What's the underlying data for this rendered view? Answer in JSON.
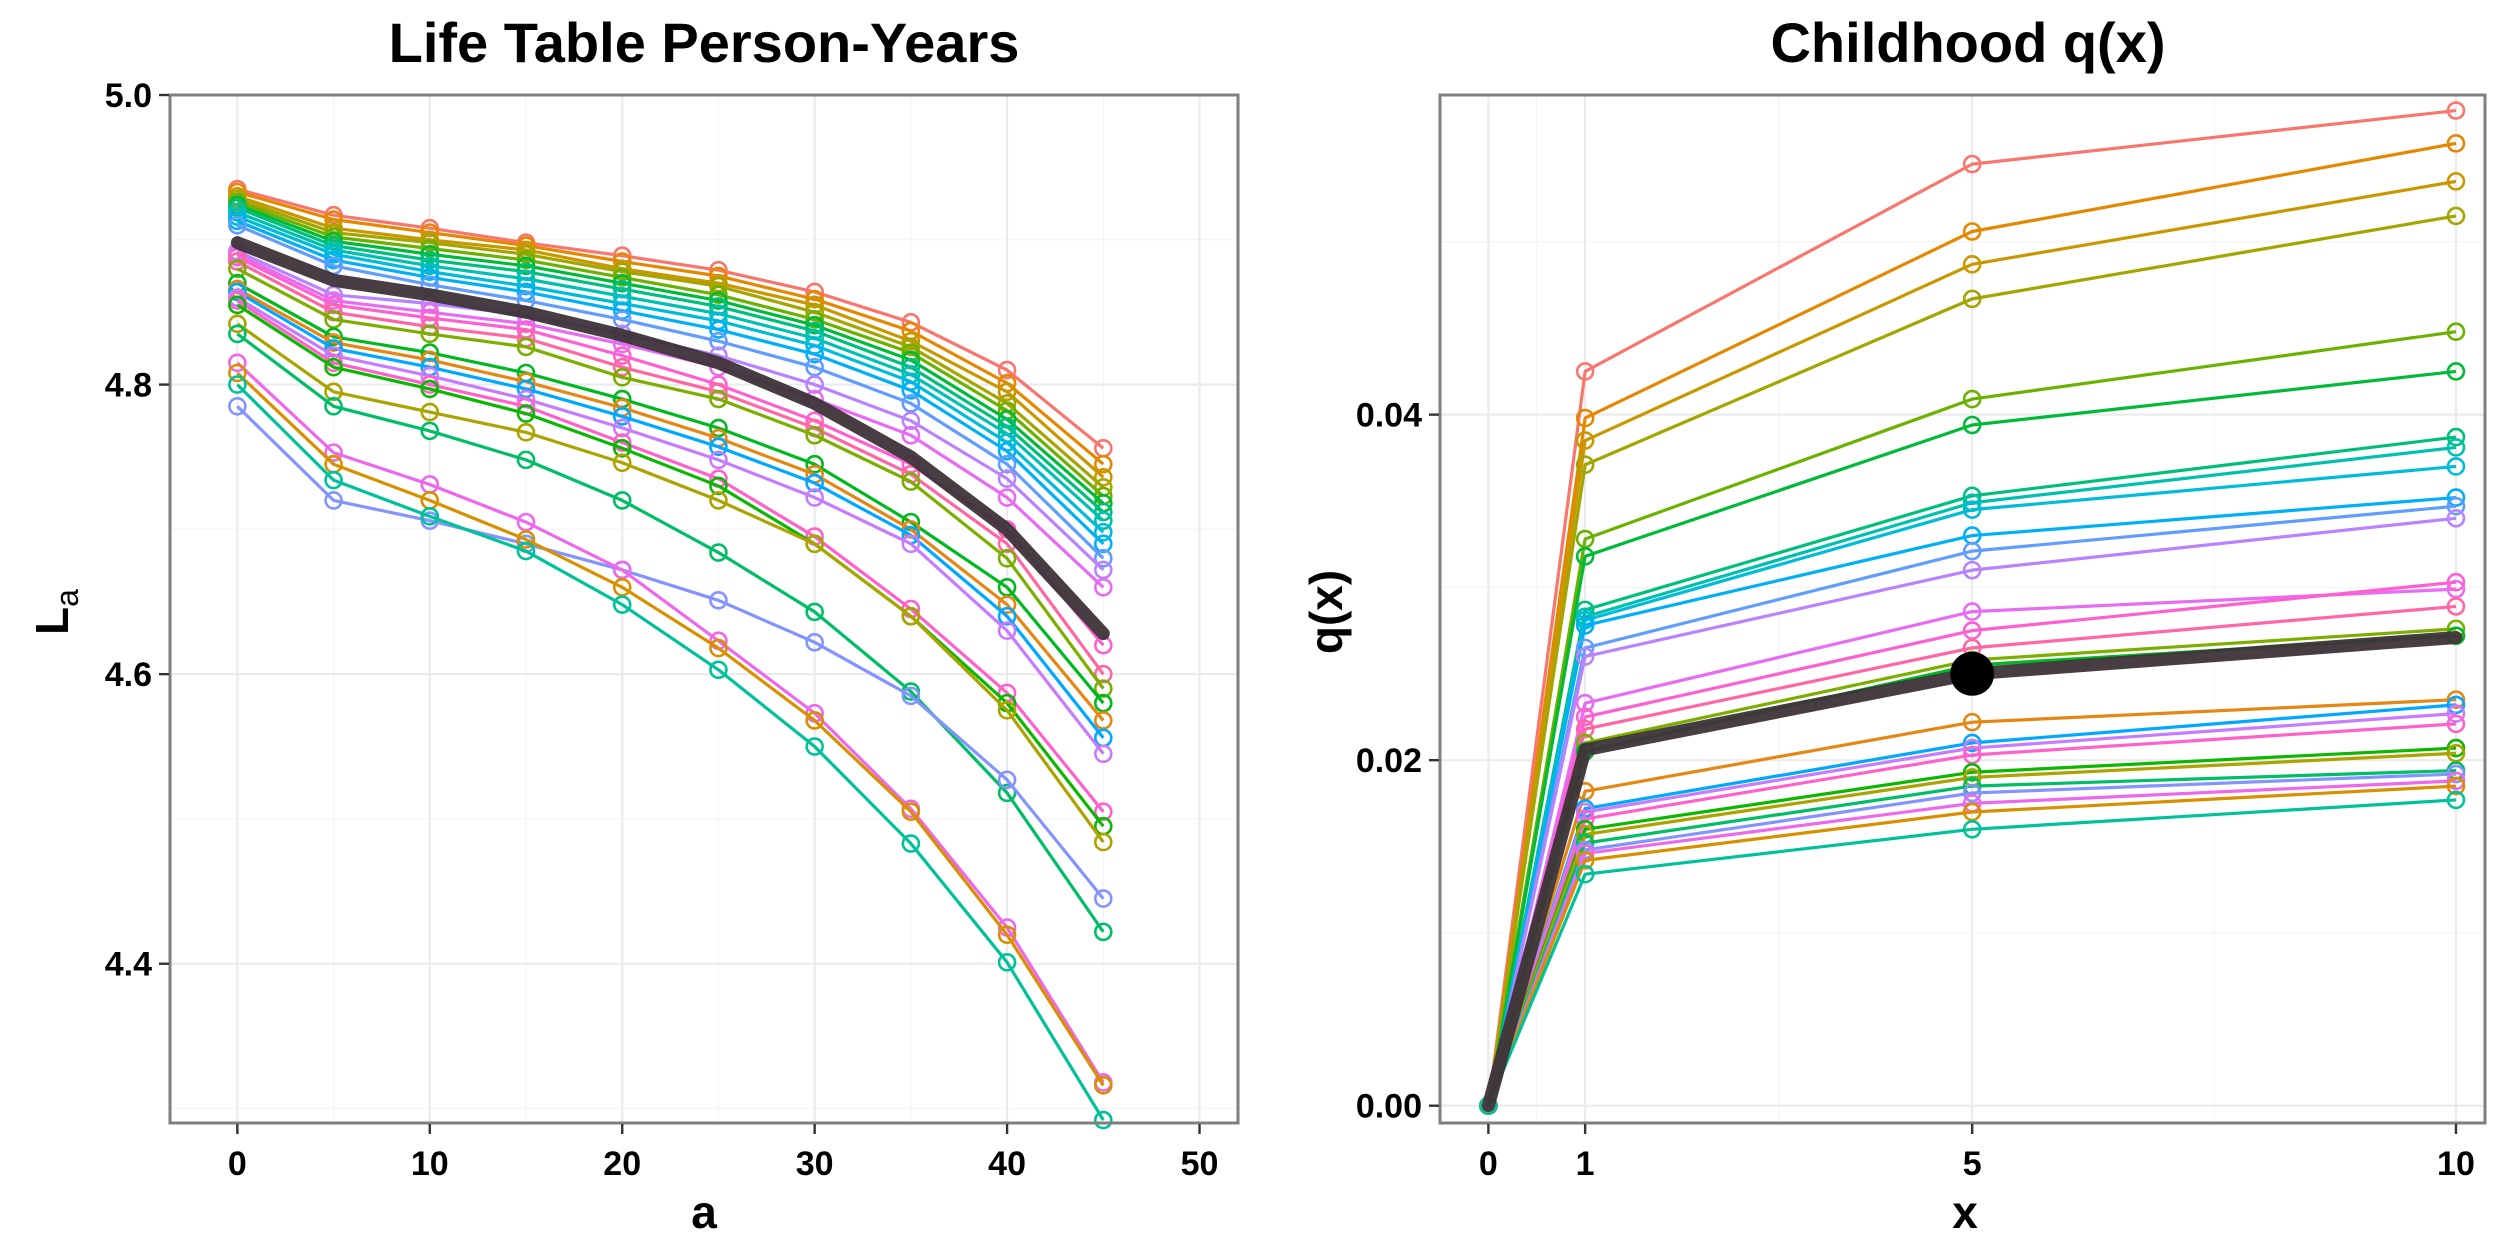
{
  "palette": [
    "#F8766D",
    "#E58700",
    "#C99800",
    "#A3A500",
    "#6BB100",
    "#00BA38",
    "#00BF7D",
    "#00C0AF",
    "#00BCD8",
    "#00B0F6",
    "#619CFF",
    "#B983FF",
    "#E76BF3",
    "#FD61D1",
    "#FF67A4",
    "#7CAE00",
    "#00B81F",
    "#E68613",
    "#00A9FF",
    "#C77CFF",
    "#FF61CC",
    "#0CB702",
    "#ABA300",
    "#00BE67",
    "#8494FF",
    "#ED68ED",
    "#D89000",
    "#00C19A"
  ],
  "mean_color": "#3d3338",
  "chart_data": [
    {
      "type": "line",
      "title": "Life Table Person-Years",
      "xlabel": "a",
      "ylabel_main": "L",
      "ylabel_sub": "a",
      "xlim": [
        -3.5,
        52
      ],
      "ylim": [
        4.29,
        5.0
      ],
      "x_ticks": [
        0,
        10,
        20,
        30,
        40,
        50
      ],
      "x_tick_labels": [
        "0",
        "10",
        "20",
        "30",
        "40",
        "50"
      ],
      "y_ticks": [
        4.4,
        4.6,
        4.8,
        5.0
      ],
      "y_tick_labels": [
        "4.4",
        "4.6",
        "4.8",
        "5.0"
      ],
      "grid": true,
      "x": [
        0,
        5,
        10,
        15,
        20,
        25,
        30,
        35,
        40,
        45
      ],
      "series": [
        {
          "values": [
            4.935,
            4.917,
            4.908,
            4.898,
            4.889,
            4.879,
            4.864,
            4.843,
            4.81,
            4.756
          ]
        },
        {
          "values": [
            4.933,
            4.914,
            4.905,
            4.896,
            4.885,
            4.875,
            4.859,
            4.837,
            4.801,
            4.745
          ]
        },
        {
          "values": [
            4.93,
            4.908,
            4.9,
            4.893,
            4.88,
            4.87,
            4.855,
            4.83,
            4.795,
            4.736
          ]
        },
        {
          "values": [
            4.928,
            4.905,
            4.898,
            4.89,
            4.878,
            4.868,
            4.85,
            4.826,
            4.787,
            4.729
          ]
        },
        {
          "values": [
            4.926,
            4.902,
            4.894,
            4.886,
            4.874,
            4.862,
            4.845,
            4.822,
            4.782,
            4.723
          ]
        },
        {
          "values": [
            4.924,
            4.899,
            4.89,
            4.882,
            4.87,
            4.858,
            4.841,
            4.817,
            4.776,
            4.718
          ]
        },
        {
          "values": [
            4.922,
            4.896,
            4.886,
            4.878,
            4.866,
            4.854,
            4.837,
            4.812,
            4.771,
            4.712
          ]
        },
        {
          "values": [
            4.919,
            4.893,
            4.882,
            4.873,
            4.861,
            4.849,
            4.832,
            4.807,
            4.766,
            4.706
          ]
        },
        {
          "values": [
            4.916,
            4.89,
            4.878,
            4.868,
            4.856,
            4.844,
            4.827,
            4.802,
            4.76,
            4.698
          ]
        },
        {
          "values": [
            4.913,
            4.886,
            4.874,
            4.864,
            4.851,
            4.838,
            4.821,
            4.796,
            4.754,
            4.69
          ]
        },
        {
          "values": [
            4.91,
            4.882,
            4.869,
            4.858,
            4.845,
            4.83,
            4.812,
            4.787,
            4.745,
            4.68
          ]
        },
        {
          "values": [
            4.892,
            4.862,
            4.856,
            4.848,
            4.835,
            4.82,
            4.8,
            4.775,
            4.735,
            4.672
          ]
        },
        {
          "values": [
            4.89,
            4.858,
            4.85,
            4.842,
            4.828,
            4.812,
            4.79,
            4.765,
            4.722,
            4.66
          ]
        },
        {
          "values": [
            4.888,
            4.855,
            4.846,
            4.838,
            4.82,
            4.8,
            4.775,
            4.745,
            4.7,
            4.62
          ]
        },
        {
          "values": [
            4.885,
            4.85,
            4.84,
            4.832,
            4.812,
            4.795,
            4.77,
            4.738,
            4.69,
            4.6
          ]
        },
        {
          "values": [
            4.88,
            4.845,
            4.835,
            4.826,
            4.805,
            4.79,
            4.765,
            4.733,
            4.68,
            4.59
          ]
        },
        {
          "values": [
            4.87,
            4.833,
            4.822,
            4.808,
            4.79,
            4.77,
            4.745,
            4.705,
            4.66,
            4.58
          ]
        },
        {
          "values": [
            4.866,
            4.829,
            4.817,
            4.802,
            4.784,
            4.763,
            4.738,
            4.7,
            4.648,
            4.568
          ]
        },
        {
          "values": [
            4.864,
            4.825,
            4.812,
            4.797,
            4.778,
            4.757,
            4.732,
            4.696,
            4.64,
            4.556
          ]
        },
        {
          "values": [
            4.86,
            4.82,
            4.806,
            4.79,
            4.77,
            4.748,
            4.722,
            4.69,
            4.63,
            4.545
          ]
        },
        {
          "values": [
            4.858,
            4.815,
            4.8,
            4.785,
            4.76,
            4.735,
            4.695,
            4.645,
            4.587,
            4.505
          ]
        },
        {
          "values": [
            4.855,
            4.812,
            4.797,
            4.78,
            4.756,
            4.73,
            4.69,
            4.64,
            4.58,
            4.495
          ]
        },
        {
          "values": [
            4.842,
            4.795,
            4.781,
            4.767,
            4.746,
            4.72,
            4.69,
            4.64,
            4.575,
            4.484
          ]
        },
        {
          "values": [
            4.835,
            4.785,
            4.768,
            4.748,
            4.72,
            4.684,
            4.643,
            4.588,
            4.518,
            4.422
          ]
        },
        {
          "values": [
            4.785,
            4.72,
            4.706,
            4.69,
            4.672,
            4.651,
            4.622,
            4.585,
            4.527,
            4.445
          ]
        },
        {
          "values": [
            4.815,
            4.753,
            4.731,
            4.705,
            4.672,
            4.623,
            4.573,
            4.507,
            4.425,
            4.318
          ]
        },
        {
          "values": [
            4.808,
            4.745,
            4.72,
            4.693,
            4.66,
            4.618,
            4.568,
            4.505,
            4.42,
            4.316
          ]
        },
        {
          "values": [
            4.8,
            4.734,
            4.709,
            4.685,
            4.648,
            4.603,
            4.55,
            4.483,
            4.401,
            4.292
          ]
        }
      ],
      "mean_series": {
        "values": [
          4.898,
          4.872,
          4.862,
          4.85,
          4.834,
          4.815,
          4.787,
          4.75,
          4.7,
          4.628
        ]
      }
    },
    {
      "type": "line",
      "title": "Childhood q(x)",
      "xlabel": "x",
      "ylabel": "q(x)",
      "xlim": [
        -0.5,
        10.3
      ],
      "ylim": [
        -0.001,
        0.0585
      ],
      "x_ticks": [
        0,
        1,
        5,
        10
      ],
      "x_tick_labels": [
        "0",
        "1",
        "5",
        "10"
      ],
      "y_ticks": [
        0.0,
        0.02,
        0.04
      ],
      "y_tick_labels": [
        "0.00",
        "0.02",
        "0.04"
      ],
      "grid": true,
      "x": [
        0,
        1,
        5,
        10
      ],
      "series": [
        {
          "values": [
            0,
            0.0425,
            0.0545,
            0.0576
          ]
        },
        {
          "values": [
            0,
            0.0398,
            0.0506,
            0.0557
          ]
        },
        {
          "values": [
            0,
            0.0385,
            0.0487,
            0.0535
          ]
        },
        {
          "values": [
            0,
            0.0371,
            0.0467,
            0.0515
          ]
        },
        {
          "values": [
            0,
            0.0328,
            0.0409,
            0.0448
          ]
        },
        {
          "values": [
            0,
            0.0318,
            0.0394,
            0.0425
          ]
        },
        {
          "values": [
            0,
            0.0287,
            0.0353,
            0.0387
          ]
        },
        {
          "values": [
            0,
            0.0283,
            0.0349,
            0.0381
          ]
        },
        {
          "values": [
            0,
            0.0281,
            0.0345,
            0.037
          ]
        },
        {
          "values": [
            0,
            0.0278,
            0.033,
            0.0352
          ]
        },
        {
          "values": [
            0,
            0.0265,
            0.0321,
            0.0347
          ]
        },
        {
          "values": [
            0,
            0.026,
            0.031,
            0.034
          ]
        },
        {
          "values": [
            0,
            0.0233,
            0.0286,
            0.0299
          ]
        },
        {
          "values": [
            0,
            0.0225,
            0.0275,
            0.0303
          ]
        },
        {
          "values": [
            0,
            0.0218,
            0.0265,
            0.0289
          ]
        },
        {
          "values": [
            0,
            0.021,
            0.0258,
            0.0276
          ]
        },
        {
          "values": [
            0,
            0.0205,
            0.0255,
            0.0272
          ]
        },
        {
          "values": [
            0,
            0.0182,
            0.0222,
            0.0235
          ]
        },
        {
          "values": [
            0,
            0.0172,
            0.021,
            0.0232
          ]
        },
        {
          "values": [
            0,
            0.017,
            0.0207,
            0.0227
          ]
        },
        {
          "values": [
            0,
            0.0166,
            0.0203,
            0.0221
          ]
        },
        {
          "values": [
            0,
            0.016,
            0.0193,
            0.0207
          ]
        },
        {
          "values": [
            0,
            0.0157,
            0.019,
            0.0204
          ]
        },
        {
          "values": [
            0,
            0.0152,
            0.0185,
            0.0194
          ]
        },
        {
          "values": [
            0,
            0.0148,
            0.0181,
            0.0192
          ]
        },
        {
          "values": [
            0,
            0.0146,
            0.0175,
            0.0188
          ]
        },
        {
          "values": [
            0,
            0.0142,
            0.017,
            0.0185
          ]
        },
        {
          "values": [
            0,
            0.0134,
            0.016,
            0.0177
          ]
        }
      ],
      "mean_series": {
        "values": [
          0,
          0.0206,
          0.025,
          0.0271
        ]
      },
      "highlight_point": {
        "x": 5,
        "y": 0.025
      }
    }
  ]
}
